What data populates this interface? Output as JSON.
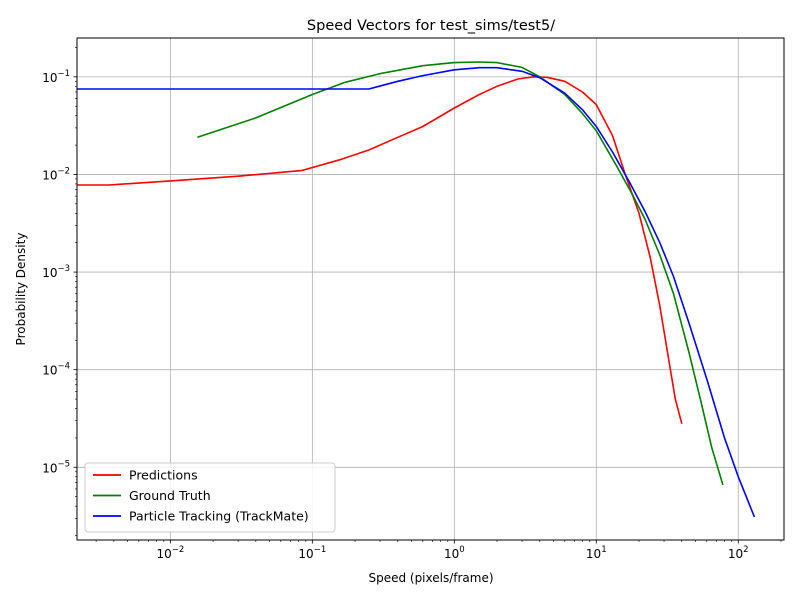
{
  "chart_data": {
    "type": "line",
    "title": "Speed Vectors for test_sims/test5/",
    "xlabel": "Speed (pixels/frame)",
    "ylabel": "Probability Density",
    "xscale": "log",
    "yscale": "log",
    "xlim": [
      0.0022,
      210
    ],
    "ylim": [
      1.8e-06,
      0.25
    ],
    "grid": true,
    "legend_position": "lower-left",
    "x_ticks": [
      {
        "value": 0.01,
        "mantissa": "10",
        "exponent": "−2"
      },
      {
        "value": 0.1,
        "mantissa": "10",
        "exponent": "−1"
      },
      {
        "value": 1,
        "mantissa": "10",
        "exponent": "0"
      },
      {
        "value": 10,
        "mantissa": "10",
        "exponent": "1"
      },
      {
        "value": 100,
        "mantissa": "10",
        "exponent": "2"
      }
    ],
    "y_ticks": [
      {
        "value": 1e-05,
        "mantissa": "10",
        "exponent": "−5"
      },
      {
        "value": 0.0001,
        "mantissa": "10",
        "exponent": "−4"
      },
      {
        "value": 0.001,
        "mantissa": "10",
        "exponent": "−3"
      },
      {
        "value": 0.01,
        "mantissa": "10",
        "exponent": "−2"
      },
      {
        "value": 0.1,
        "mantissa": "10",
        "exponent": "−1"
      }
    ],
    "series": [
      {
        "name": "Predictions",
        "color": "#ff0000",
        "points": [
          [
            0.0022,
            0.0078
          ],
          [
            0.0037,
            0.0078
          ],
          [
            0.01,
            0.0086
          ],
          [
            0.03,
            0.0096
          ],
          [
            0.085,
            0.011
          ],
          [
            0.16,
            0.0143
          ],
          [
            0.25,
            0.0178
          ],
          [
            0.4,
            0.024
          ],
          [
            0.6,
            0.031
          ],
          [
            1.0,
            0.048
          ],
          [
            1.5,
            0.066
          ],
          [
            2.0,
            0.08
          ],
          [
            2.8,
            0.095
          ],
          [
            3.6,
            0.1
          ],
          [
            4.5,
            0.099
          ],
          [
            6.0,
            0.09
          ],
          [
            8.0,
            0.07
          ],
          [
            10.0,
            0.052
          ],
          [
            13.0,
            0.025
          ],
          [
            16.0,
            0.01
          ],
          [
            20.0,
            0.004
          ],
          [
            24.0,
            0.0014
          ],
          [
            28.0,
            0.00045
          ],
          [
            32.0,
            0.00014
          ],
          [
            36.0,
            5e-05
          ],
          [
            40.0,
            2.8e-05
          ]
        ]
      },
      {
        "name": "Ground Truth",
        "color": "#008000",
        "points": [
          [
            0.0155,
            0.024
          ],
          [
            0.04,
            0.038
          ],
          [
            0.1,
            0.066
          ],
          [
            0.17,
            0.088
          ],
          [
            0.3,
            0.108
          ],
          [
            0.6,
            0.13
          ],
          [
            1.0,
            0.14
          ],
          [
            1.5,
            0.142
          ],
          [
            2.0,
            0.14
          ],
          [
            3.0,
            0.125
          ],
          [
            4.0,
            0.1
          ],
          [
            6.0,
            0.066
          ],
          [
            8.0,
            0.042
          ],
          [
            10.0,
            0.028
          ],
          [
            14.0,
            0.012
          ],
          [
            18.0,
            0.0062
          ],
          [
            22.0,
            0.0035
          ],
          [
            28.0,
            0.0015
          ],
          [
            35.0,
            0.0006
          ],
          [
            45.0,
            0.00015
          ],
          [
            55.0,
            4.5e-05
          ],
          [
            65.0,
            1.6e-05
          ],
          [
            78.0,
            6.6e-06
          ]
        ]
      },
      {
        "name": "Particle Tracking (TrackMate)",
        "color": "#0000ff",
        "points": [
          [
            0.0022,
            0.075
          ],
          [
            0.01,
            0.075
          ],
          [
            0.1,
            0.075
          ],
          [
            0.25,
            0.075
          ],
          [
            0.4,
            0.09
          ],
          [
            0.6,
            0.103
          ],
          [
            1.0,
            0.118
          ],
          [
            1.5,
            0.124
          ],
          [
            2.0,
            0.124
          ],
          [
            3.0,
            0.114
          ],
          [
            4.0,
            0.098
          ],
          [
            6.0,
            0.068
          ],
          [
            8.0,
            0.046
          ],
          [
            10.0,
            0.031
          ],
          [
            13.0,
            0.017
          ],
          [
            17.0,
            0.0085
          ],
          [
            22.0,
            0.0042
          ],
          [
            28.0,
            0.002
          ],
          [
            35.0,
            0.0009
          ],
          [
            45.0,
            0.0003
          ],
          [
            60.0,
            8e-05
          ],
          [
            80.0,
            2e-05
          ],
          [
            100.0,
            8e-06
          ],
          [
            130.0,
            3.1e-06
          ]
        ]
      }
    ]
  }
}
